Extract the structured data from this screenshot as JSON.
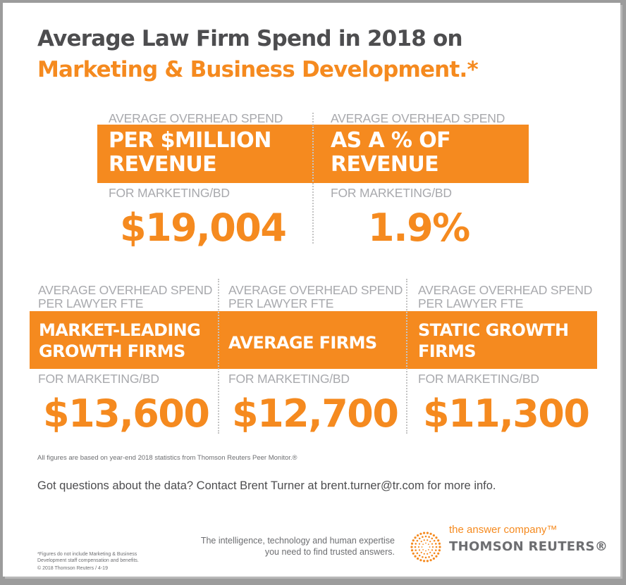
{
  "header": {
    "title_line1": "Average Law Firm Spend in 2018 on",
    "title_line2": "Marketing & Business Development.*"
  },
  "top_metrics": [
    {
      "pre_label": "AVERAGE OVERHEAD SPEND",
      "bar_line1": "PER $MILLION",
      "bar_line2": "REVENUE",
      "post_label": "FOR MARKETING/BD",
      "value": "$19,004"
    },
    {
      "pre_label": "AVERAGE OVERHEAD SPEND",
      "bar_line1": "AS A % OF",
      "bar_line2": "REVENUE",
      "post_label": "FOR MARKETING/BD",
      "value": "1.9%"
    }
  ],
  "bottom_metrics": [
    {
      "pre_label_line1": "AVERAGE OVERHEAD SPEND",
      "pre_label_line2": "PER LAWYER FTE",
      "bar_line1": "MARKET-LEADING",
      "bar_line2": "GROWTH FIRMS",
      "post_label": "FOR MARKETING/BD",
      "value": "$13,600"
    },
    {
      "pre_label_line1": "AVERAGE OVERHEAD SPEND",
      "pre_label_line2": "PER LAWYER FTE",
      "bar_line1": "AVERAGE FIRMS",
      "post_label": "FOR MARKETING/BD",
      "value": "$12,700"
    },
    {
      "pre_label_line1": "AVERAGE OVERHEAD SPEND",
      "pre_label_line2": "PER LAWYER FTE",
      "bar_line1": "STATIC GROWTH",
      "bar_line2": "FIRMS",
      "post_label": "FOR MARKETING/BD",
      "value": "$11,300"
    }
  ],
  "source_note": "All figures are based on year-end 2018 statistics from Thomson Reuters Peer Monitor.®",
  "contact": "Got questions about the data? Contact Brent Turner at brent.turner@tr.com for more info.",
  "footer": {
    "footnote_line1": "*Figures do not include Marketing & Business",
    "footnote_line2": "Development staff compensation and benefits.",
    "copyright": "© 2018 Thomson Reuters / 4-19",
    "tagline_line1": "The intelligence, technology and human expertise",
    "tagline_line2": "you need to find trusted answers.",
    "brand_slogan": "the answer company™",
    "brand_name": "THOMSON REUTERS®"
  },
  "colors": {
    "accent": "#f58a1f",
    "heading": "#4d4d4f",
    "label": "#a8a9ad"
  },
  "icons": {
    "logo": "thomson-reuters-dot-circle-icon"
  }
}
